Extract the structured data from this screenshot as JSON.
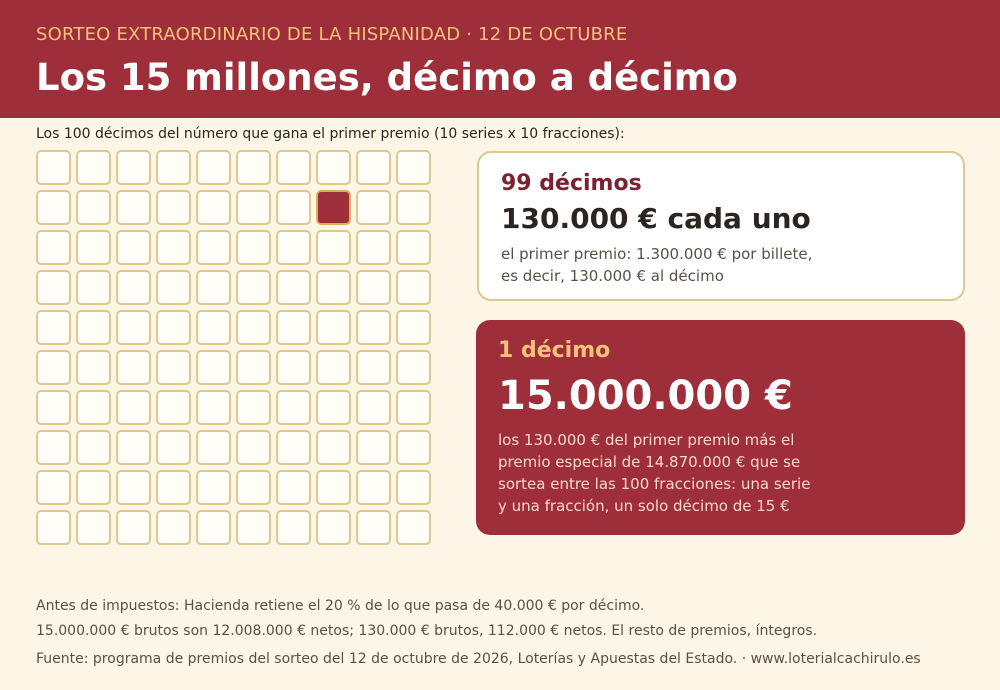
{
  "header": {
    "kicker": "SORTEO EXTRAORDINARIO DE LA HISPANIDAD · 12 DE OCTUBRE",
    "title": "Los 15 millones, décimo a décimo"
  },
  "grid": {
    "caption": "Los 100 décimos del número que gana el primer premio (10 series x 10 fracciones):"
  },
  "cards": [
    {
      "label": "99 décimos",
      "amount": "130.000 € cada uno",
      "note": [
        "el primer premio: 1.300.000 € por billete,",
        "es decir, 130.000 € al décimo"
      ]
    },
    {
      "label": "1 décimo",
      "amount": "15.000.000 €",
      "note": [
        "los 130.000 € del primer premio más el",
        "premio especial de 14.870.000 € que se",
        "sortea entre las 100 fracciones: una serie",
        "y una fracción, un solo décimo de 15 €"
      ]
    }
  ],
  "footer": [
    "Antes de impuestos: Hacienda retiene el 20 % de lo que pasa de 40.000 € por décimo.",
    "15.000.000 € brutos son 12.008.000 € netos; 130.000 € brutos, 112.000 € netos. El resto de premios, íntegros.",
    "Fuente: programa de premios del sorteo del 12 de octubre de 2026, Loterías y Apuestas del Estado.  ·  www.loterialcachirulo.es"
  ]
}
